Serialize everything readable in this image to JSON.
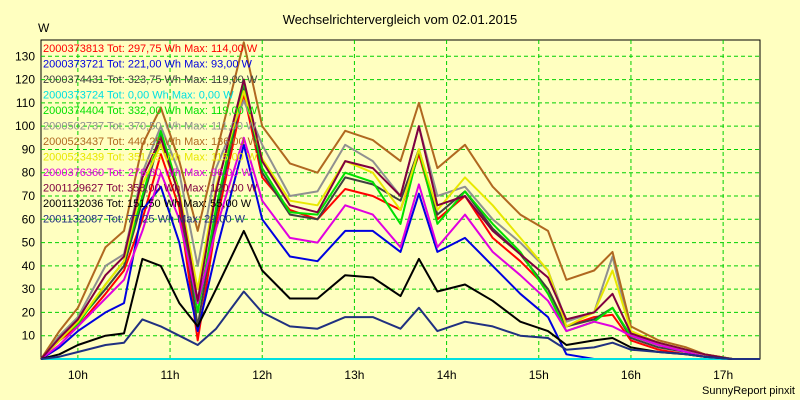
{
  "chart_data": {
    "type": "line",
    "title": "Wechselrichtervergleich vom 02.01.2015",
    "ylabel": "W",
    "xlabel": "",
    "footer": "SunnyReport pinxit",
    "ylim": [
      0,
      137
    ],
    "xlim": [
      9.6,
      17.4
    ],
    "y_ticks": [
      10,
      20,
      30,
      40,
      50,
      60,
      70,
      80,
      90,
      100,
      110,
      120,
      130
    ],
    "x_ticks": [
      {
        "v": 10,
        "label": "10h"
      },
      {
        "v": 11,
        "label": "11h"
      },
      {
        "v": 12,
        "label": "12h"
      },
      {
        "v": 13,
        "label": "13h"
      },
      {
        "v": 14,
        "label": "14h"
      },
      {
        "v": 15,
        "label": "15h"
      },
      {
        "v": 16,
        "label": "16h"
      },
      {
        "v": 17,
        "label": "17h"
      }
    ],
    "grid": true,
    "x": [
      9.6,
      9.8,
      10.0,
      10.3,
      10.5,
      10.7,
      10.9,
      11.1,
      11.3,
      11.5,
      11.8,
      12.0,
      12.3,
      12.6,
      12.9,
      13.2,
      13.5,
      13.7,
      13.9,
      14.2,
      14.5,
      14.8,
      15.1,
      15.3,
      15.6,
      15.8,
      16.0,
      16.3,
      16.6,
      16.8,
      17.1,
      17.4
    ],
    "series": [
      {
        "name": "2000373813 Tot: 297,75 Wh Max: 114,00 W",
        "color": "#ff0000",
        "values": [
          0,
          8,
          14,
          28,
          38,
          60,
          88,
          65,
          8,
          58,
          114,
          78,
          64,
          60,
          73,
          70,
          64,
          88,
          60,
          70,
          52,
          42,
          30,
          14,
          18,
          19,
          8,
          4,
          2,
          1,
          0,
          0
        ]
      },
      {
        "name": "2000373721 Tot: 221,00 Wh Max: 93,00 W",
        "color": "#0000e0",
        "values": [
          0,
          5,
          12,
          20,
          24,
          64,
          74,
          50,
          12,
          46,
          92,
          60,
          44,
          42,
          55,
          55,
          46,
          71,
          46,
          52,
          40,
          28,
          18,
          2,
          0,
          0,
          0,
          0,
          0,
          0,
          0,
          0
        ]
      },
      {
        "name": "2000374431 Tot: 323,75 Wh Max: 119,00 W",
        "color": "#404040",
        "values": [
          0,
          8,
          16,
          30,
          40,
          68,
          96,
          70,
          14,
          62,
          117,
          80,
          62,
          60,
          78,
          75,
          68,
          90,
          62,
          72,
          56,
          45,
          30,
          14,
          17,
          22,
          9,
          5,
          3,
          1,
          0,
          0
        ]
      },
      {
        "name": "2000373724 Tot: 0,00 Wh Max: 0,00 W",
        "color": "#00e0e0",
        "values": [
          0,
          0,
          0,
          0,
          0,
          0,
          0,
          0,
          0,
          0,
          0,
          0,
          0,
          0,
          0,
          0,
          0,
          0,
          0,
          0,
          0,
          0,
          0,
          0,
          0,
          0,
          0,
          0,
          0,
          0,
          0,
          0
        ]
      },
      {
        "name": "2000374404 Tot: 332,00 Wh Max: 119,00 W",
        "color": "#00e000",
        "values": [
          0,
          9,
          15,
          32,
          42,
          70,
          98,
          72,
          20,
          65,
          119,
          82,
          63,
          62,
          80,
          76,
          58,
          90,
          58,
          72,
          58,
          46,
          28,
          12,
          16,
          22,
          10,
          6,
          4,
          2,
          0,
          0
        ]
      },
      {
        "name": "2000502737 Tot: 370,50 Wh Max: 111,00 W",
        "color": "#909090",
        "values": [
          0,
          10,
          18,
          40,
          45,
          80,
          100,
          80,
          40,
          82,
          111,
          92,
          70,
          72,
          92,
          85,
          70,
          100,
          70,
          74,
          60,
          50,
          38,
          16,
          20,
          44,
          11,
          6,
          4,
          2,
          0,
          0
        ]
      },
      {
        "name": "2000523437 Tot: 440,25 Wh Max: 136,00 W",
        "color": "#b06820",
        "values": [
          0,
          12,
          22,
          48,
          55,
          92,
          108,
          85,
          55,
          88,
          136,
          100,
          84,
          80,
          98,
          94,
          85,
          110,
          82,
          92,
          74,
          62,
          55,
          34,
          38,
          46,
          14,
          8,
          5,
          2,
          0,
          0
        ]
      },
      {
        "name": "2000523439 Tot: 351,75 Wh Max: 115,00 W",
        "color": "#e8e800",
        "values": [
          0,
          8,
          16,
          32,
          42,
          75,
          92,
          72,
          30,
          74,
          115,
          86,
          68,
          66,
          85,
          80,
          64,
          90,
          64,
          78,
          66,
          52,
          38,
          14,
          20,
          38,
          12,
          7,
          4,
          2,
          0,
          0
        ]
      },
      {
        "name": "2000376360 Tot: 276,80 Wh Max: 96,00 W",
        "color": "#e000e0",
        "values": [
          0,
          6,
          14,
          26,
          34,
          55,
          80,
          60,
          24,
          56,
          95,
          68,
          52,
          50,
          66,
          62,
          48,
          75,
          48,
          62,
          46,
          36,
          25,
          12,
          16,
          14,
          10,
          6,
          3,
          1,
          0,
          0
        ]
      },
      {
        "name": "2001129627 Tot: 358,00 Wh Max: 120,00 W",
        "color": "#800040",
        "values": [
          0,
          9,
          17,
          36,
          44,
          78,
          95,
          70,
          25,
          72,
          120,
          85,
          66,
          63,
          85,
          82,
          70,
          100,
          66,
          70,
          55,
          45,
          35,
          17,
          20,
          28,
          11,
          7,
          4,
          2,
          0,
          0
        ]
      },
      {
        "name": "2001132036 Tot: 151,50 Wh Max: 55,00 W",
        "color": "#000000",
        "values": [
          0,
          2,
          6,
          10,
          11,
          43,
          40,
          24,
          14,
          30,
          55,
          38,
          26,
          26,
          36,
          35,
          27,
          43,
          29,
          32,
          25,
          16,
          12,
          6,
          8,
          9,
          5,
          3,
          2,
          1,
          0,
          0
        ]
      },
      {
        "name": "2001132087 Tot: 77,25 Wh Max: 29,00 W",
        "color": "#203080",
        "values": [
          0,
          1,
          3,
          6,
          7,
          17,
          14,
          10,
          6,
          13,
          29,
          20,
          14,
          13,
          18,
          18,
          13,
          22,
          12,
          16,
          14,
          10,
          9,
          4,
          5,
          7,
          4,
          3,
          2,
          1,
          0,
          0
        ]
      }
    ]
  }
}
